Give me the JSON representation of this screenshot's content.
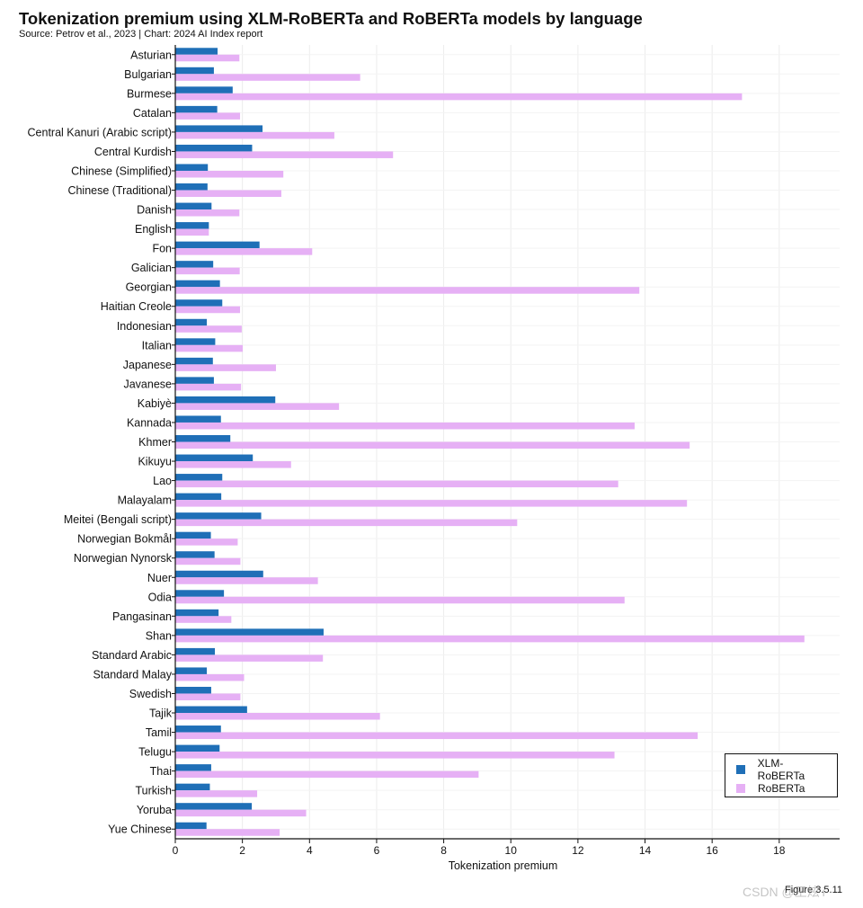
{
  "chart_data": {
    "type": "bar",
    "orientation": "horizontal",
    "title": "Tokenization premium using XLM-RoBERTa and RoBERTa models by language",
    "subtitle": "Source: Petrov et al., 2023 | Chart: 2024 AI Index report",
    "xlabel": "Tokenization premium",
    "ylabel": "",
    "xlim": [
      0,
      19.8
    ],
    "xticks": [
      0,
      2,
      4,
      6,
      8,
      10,
      12,
      14,
      16,
      18
    ],
    "grid": true,
    "legend_position": "lower-right",
    "categories": [
      "Asturian",
      "Bulgarian",
      "Burmese",
      "Catalan",
      "Central Kanuri (Arabic script)",
      "Central Kurdish",
      "Chinese (Simplified)",
      "Chinese (Traditional)",
      "Danish",
      "English",
      "Fon",
      "Galician",
      "Georgian",
      "Haitian Creole",
      "Indonesian",
      "Italian",
      "Japanese",
      "Javanese",
      "Kabiyè",
      "Kannada",
      "Khmer",
      "Kikuyu",
      "Lao",
      "Malayalam",
      "Meitei (Bengali script)",
      "Norwegian Bokmål",
      "Norwegian Nynorsk",
      "Nuer",
      "Odia",
      "Pangasinan",
      "Shan",
      "Standard Arabic",
      "Standard Malay",
      "Swedish",
      "Tajik",
      "Tamil",
      "Telugu",
      "Thai",
      "Turkish",
      "Yoruba",
      "Yue Chinese"
    ],
    "series": [
      {
        "name": "XLM-RoBERTa",
        "color": "#1f6fb7",
        "values": [
          1.26,
          1.15,
          1.71,
          1.25,
          2.6,
          2.29,
          0.97,
          0.96,
          1.08,
          1.0,
          2.51,
          1.13,
          1.33,
          1.4,
          0.94,
          1.19,
          1.12,
          1.15,
          2.98,
          1.36,
          1.64,
          2.31,
          1.4,
          1.37,
          2.56,
          1.06,
          1.17,
          2.62,
          1.45,
          1.29,
          4.42,
          1.18,
          0.94,
          1.07,
          2.14,
          1.36,
          1.32,
          1.07,
          1.03,
          2.28,
          0.93
        ]
      },
      {
        "name": "RoBERTa",
        "color": "#e6b0f5",
        "values": [
          1.91,
          5.51,
          16.89,
          1.93,
          4.74,
          6.49,
          3.22,
          3.16,
          1.91,
          1.0,
          4.08,
          1.92,
          13.83,
          1.93,
          1.98,
          2.01,
          3.0,
          1.96,
          4.88,
          13.69,
          15.33,
          3.45,
          13.2,
          15.25,
          10.19,
          1.86,
          1.94,
          4.25,
          13.39,
          1.67,
          18.75,
          4.4,
          2.05,
          1.94,
          6.1,
          15.57,
          13.09,
          9.04,
          2.44,
          3.9,
          3.11
        ]
      }
    ]
  },
  "figure_number": "Figure 3.5.11",
  "watermark": "CSDN @王炫 i"
}
